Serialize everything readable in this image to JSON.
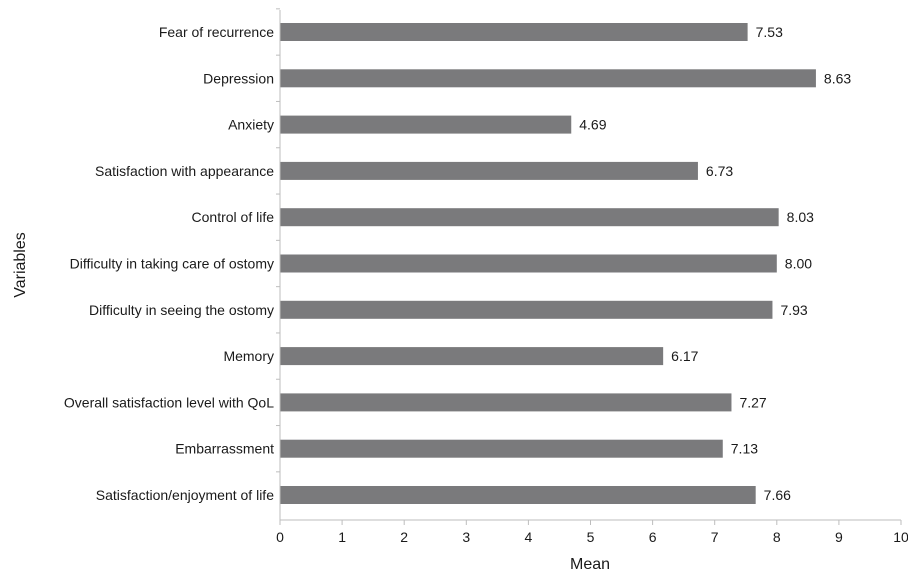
{
  "chart_data": {
    "type": "bar",
    "orientation": "horizontal",
    "categories": [
      "Fear of recurrence",
      "Depression",
      "Anxiety",
      "Satisfaction with appearance",
      "Control of life",
      "Difficulty in taking care of ostomy",
      "Difficulty in seeing the ostomy",
      "Memory",
      "Overall satisfaction level with QoL",
      "Embarrassment",
      "Satisfaction/enjoyment of life"
    ],
    "values": [
      7.53,
      8.63,
      4.69,
      6.73,
      8.03,
      8.0,
      7.93,
      6.17,
      7.27,
      7.13,
      7.66
    ],
    "value_labels": [
      "7.53",
      "8.63",
      "4.69",
      "6.73",
      "8.03",
      "8.00",
      "7.93",
      "6.17",
      "7.27",
      "7.13",
      "7.66"
    ],
    "xlabel": "Mean",
    "ylabel": "Variables",
    "xlim": [
      0,
      10
    ],
    "xticks": [
      "0",
      "1",
      "2",
      "3",
      "4",
      "5",
      "6",
      "7",
      "8",
      "9",
      "10"
    ],
    "grid": false,
    "legend": "none",
    "bar_color": "#7a7a7c",
    "axis_color": "#bdbdbd"
  }
}
